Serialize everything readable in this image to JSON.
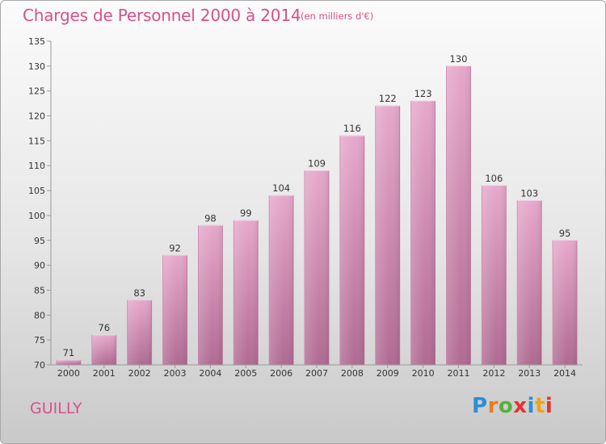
{
  "header": {
    "title": "Charges de Personnel 2000 à 2014",
    "subtitle": "(en milliers d'€)"
  },
  "footer": {
    "location": "GUILLY",
    "logo_text": "Proxiti"
  },
  "colors": {
    "accent": "#d8508a",
    "bar_top": "#e6a8cb",
    "bar_bottom": "#b06a92",
    "logo_letters": [
      "#2a8fd6",
      "#f07a1a",
      "#56b03a",
      "#e8322e",
      "#2a8fd6",
      "#f0a21a",
      "#e8322e"
    ]
  },
  "chart_data": {
    "type": "bar",
    "categories": [
      "2000",
      "2001",
      "2002",
      "2003",
      "2004",
      "2005",
      "2006",
      "2007",
      "2008",
      "2009",
      "2010",
      "2011",
      "2012",
      "2013",
      "2014"
    ],
    "values": [
      71,
      76,
      83,
      92,
      98,
      99,
      104,
      109,
      116,
      122,
      123,
      130,
      106,
      103,
      95
    ],
    "title": "Charges de Personnel 2000 à 2014",
    "subtitle": "(en milliers d'€)",
    "ylim": [
      70,
      135
    ],
    "yticks": [
      70,
      75,
      80,
      85,
      90,
      95,
      100,
      105,
      110,
      115,
      120,
      125,
      130,
      135
    ],
    "grid": false,
    "data_labels": true
  }
}
